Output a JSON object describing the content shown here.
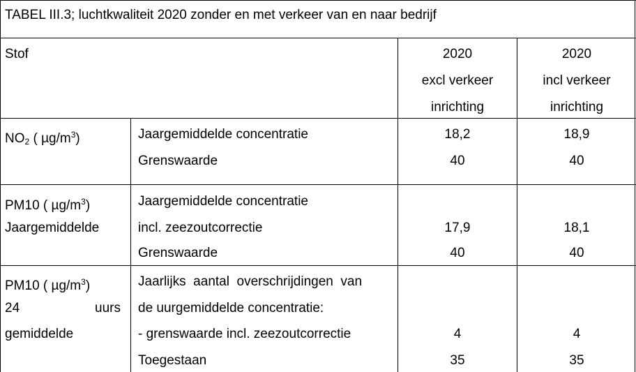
{
  "title": "TABEL III.3; luchtkwaliteit 2020 zonder en met verkeer van en naar bedrijf",
  "header": {
    "col1": "Stof",
    "col3": [
      "2020",
      "excl verkeer",
      "inrichting"
    ],
    "col4": [
      "2020",
      "incl verkeer",
      "inrichting"
    ]
  },
  "rows": [
    {
      "stof": {
        "main": "NO",
        "sub": "2",
        "unit_pre": " ( µg/m",
        "sup": "3",
        "unit_post": ")"
      },
      "lines": [
        "Jaargemiddelde concentratie",
        "Grenswaarde"
      ],
      "excl": [
        "18,2",
        "40"
      ],
      "incl": [
        "18,9",
        "40"
      ]
    },
    {
      "stof": {
        "unit_pre": "PM10 ( µg/m",
        "sup": "3",
        "unit_post": ")",
        "line2": "Jaargemiddelde"
      },
      "lines": [
        "Jaargemiddelde concentratie",
        "incl. zeezoutcorrectie",
        "Grenswaarde"
      ],
      "excl": [
        "17,9",
        "40"
      ],
      "incl": [
        "18,1",
        "40"
      ]
    },
    {
      "stof": {
        "unit_pre": "PM10 ( µg/m",
        "sup": "3",
        "unit_post": ")",
        "line2a": "24",
        "line2b": "uurs",
        "line3": "gemiddelde"
      },
      "lines": [
        "Jaarlijks  aantal  overschrijdingen  van",
        "de uurgemiddelde concentratie:",
        "- grenswaarde incl. zeezoutcorrectie",
        "Toegestaan"
      ],
      "excl": [
        "4",
        "35"
      ],
      "incl": [
        "4",
        "35"
      ]
    }
  ]
}
